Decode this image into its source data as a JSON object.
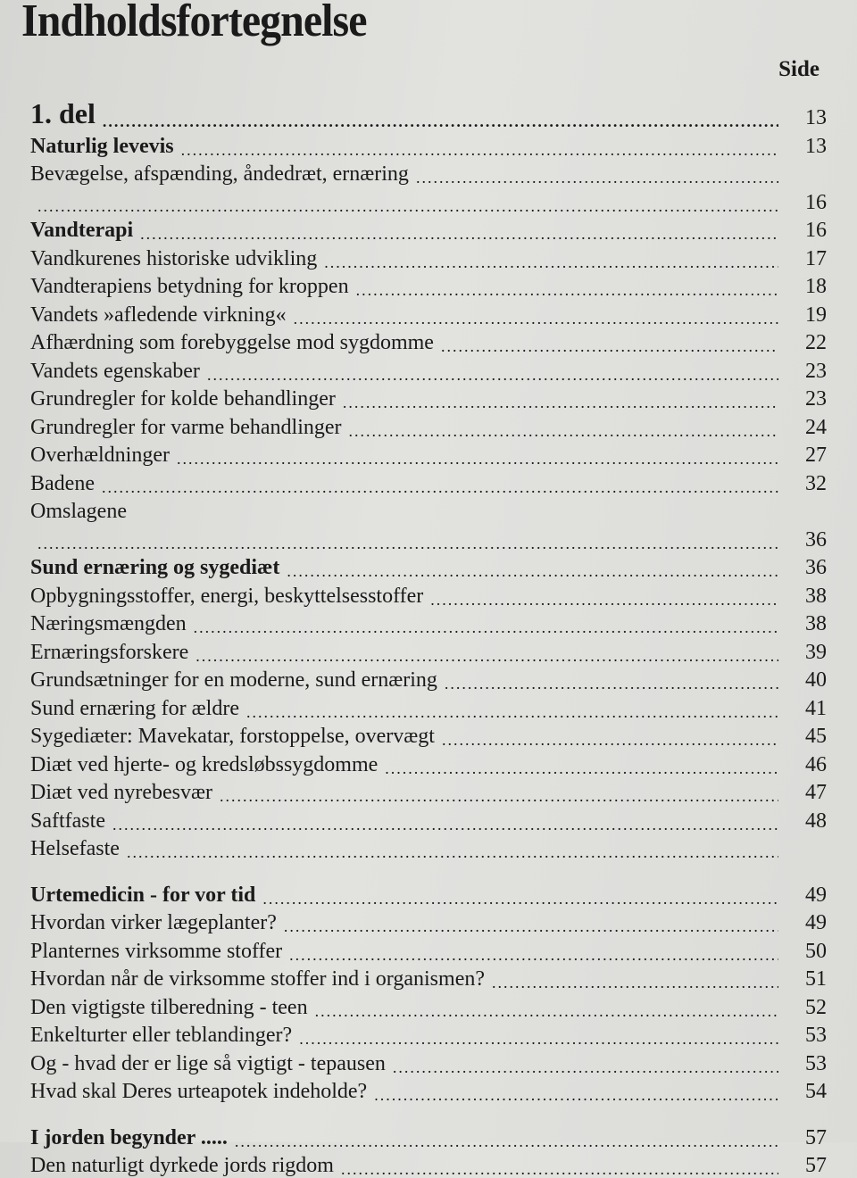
{
  "title": "Indholdsfortegnelse",
  "column_header": "Side",
  "rows": [
    {
      "type": "part",
      "text": "1. del",
      "page": "13"
    },
    {
      "type": "head",
      "text": "Naturlig levevis",
      "page": "13"
    },
    {
      "type": "item",
      "text": "Bevægelse, afspænding, åndedræt, ernæring",
      "page": ""
    },
    {
      "type": "item",
      "text": "",
      "page": "16"
    },
    {
      "type": "head",
      "text": "Vandterapi",
      "page": "16"
    },
    {
      "type": "item",
      "text": "Vandkurenes historiske udvikling",
      "page": "17"
    },
    {
      "type": "item",
      "text": "Vandterapiens betydning for kroppen",
      "page": "18"
    },
    {
      "type": "item",
      "text": "Vandets »afledende virkning«",
      "page": "19"
    },
    {
      "type": "item",
      "text": "Afhærdning som forebyggelse mod sygdomme",
      "page": "22"
    },
    {
      "type": "item",
      "text": "Vandets egenskaber",
      "page": "23"
    },
    {
      "type": "item",
      "text": "Grundregler for kolde behandlinger",
      "page": "23"
    },
    {
      "type": "item",
      "text": "Grundregler for varme behandlinger",
      "page": "24"
    },
    {
      "type": "item",
      "text": "Overhældninger",
      "page": "27"
    },
    {
      "type": "item",
      "text": "Badene",
      "page": "32"
    },
    {
      "type": "item",
      "text": "Omslagene",
      "page": "",
      "nodots": true
    },
    {
      "type": "item",
      "text": "",
      "page": "36"
    },
    {
      "type": "head",
      "text": "Sund ernæring og sygediæt",
      "page": "36"
    },
    {
      "type": "item",
      "text": "Opbygningsstoffer, energi, beskyttelsesstoffer",
      "page": "38"
    },
    {
      "type": "item",
      "text": "Næringsmængden",
      "page": "38"
    },
    {
      "type": "item",
      "text": "Ernæringsforskere",
      "page": "39"
    },
    {
      "type": "item",
      "text": "Grundsætninger for en moderne, sund ernæring",
      "page": "40"
    },
    {
      "type": "item",
      "text": "Sund ernæring for ældre",
      "page": "41"
    },
    {
      "type": "item",
      "text": "Sygediæter: Mavekatar, forstoppelse, overvægt",
      "page": "45"
    },
    {
      "type": "item",
      "text": "Diæt ved hjerte- og kredsløbssygdomme",
      "page": "46"
    },
    {
      "type": "item",
      "text": "Diæt ved nyrebesvær",
      "page": "47"
    },
    {
      "type": "item",
      "text": "Saftfaste",
      "page": "48"
    },
    {
      "type": "item",
      "text": "Helsefaste",
      "page": ""
    },
    {
      "type": "gap"
    },
    {
      "type": "head",
      "text": "Urtemedicin - for vor tid",
      "page": "49"
    },
    {
      "type": "item",
      "text": "Hvordan virker lægeplanter?",
      "page": "49"
    },
    {
      "type": "item",
      "text": "Planternes virksomme stoffer",
      "page": "50"
    },
    {
      "type": "item",
      "text": "Hvordan når de virksomme stoffer ind i organismen?",
      "page": "51"
    },
    {
      "type": "item",
      "text": "Den vigtigste tilberedning - teen",
      "page": "52"
    },
    {
      "type": "item",
      "text": "Enkelturter eller teblandinger?",
      "page": "53"
    },
    {
      "type": "item",
      "text": "Og - hvad der er lige så vigtigt - tepausen",
      "page": "53"
    },
    {
      "type": "item",
      "text": "Hvad skal Deres urteapotek indeholde?",
      "page": "54"
    },
    {
      "type": "gap"
    },
    {
      "type": "head",
      "text": "I jorden begynder .....",
      "page": "57"
    },
    {
      "type": "item",
      "text": "Den naturligt dyrkede jords rigdom",
      "page": "57"
    }
  ]
}
